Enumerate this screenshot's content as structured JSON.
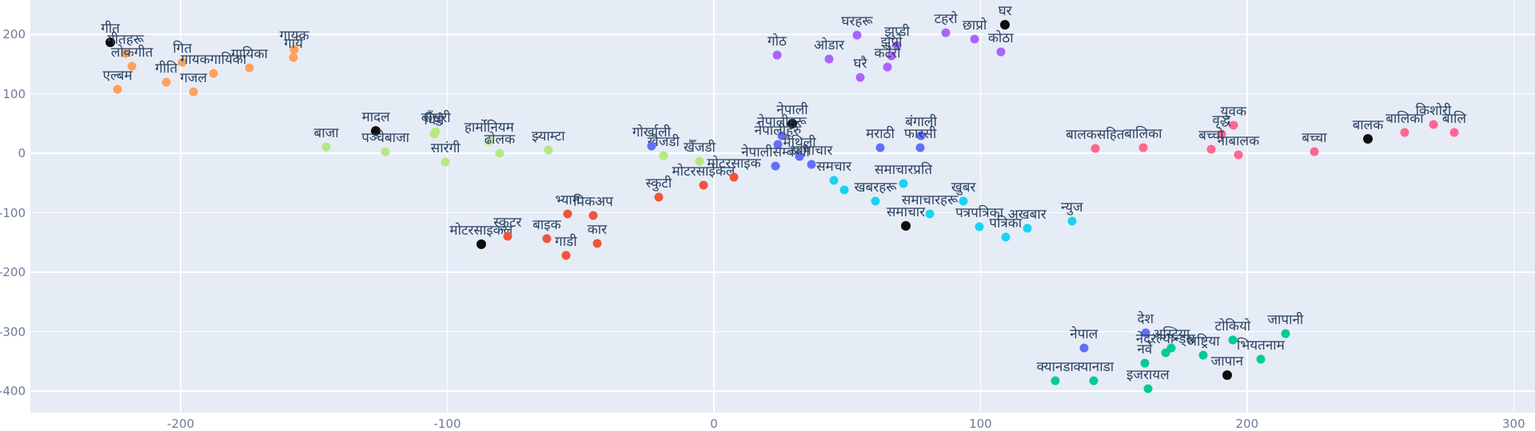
{
  "figure": {
    "background": "#ffffff",
    "plot_background": "#E5ECF6",
    "grid_color": "#ffffff",
    "label_color": "#2a3f5f",
    "tick_color": "#6e7b99",
    "query_marker_color": "#0d0d0d"
  },
  "axes": {
    "x": {
      "ticks": [
        -200,
        -100,
        0,
        100,
        200,
        300
      ],
      "range": [
        -256.4,
        308
      ]
    },
    "y": {
      "ticks": [
        200,
        100,
        0,
        -100,
        -200,
        -300,
        -400
      ],
      "range": [
        -436,
        258
      ]
    }
  },
  "chart_data": {
    "type": "scatter",
    "title": "",
    "xlabel": "",
    "ylabel": "",
    "grid": true,
    "legend": false,
    "series": [
      {
        "name": "गीत",
        "color": "#FFA15A",
        "points": [
          {
            "label": "गीत",
            "x": -226.4,
            "y": 186.6,
            "query": true
          },
          {
            "label": "गीतहरू",
            "x": -220.7,
            "y": 167.8
          },
          {
            "label": "लोकगीत",
            "x": -218.3,
            "y": 146.3
          },
          {
            "label": "एल्बम",
            "x": -223.7,
            "y": 107.4
          },
          {
            "label": "गित",
            "x": -199.4,
            "y": 153.0
          },
          {
            "label": "गीति",
            "x": -205.4,
            "y": 119.5
          },
          {
            "label": "गजल",
            "x": -195.2,
            "y": 103.4
          },
          {
            "label": "गायकगायिका",
            "x": -187.7,
            "y": 134.2
          },
          {
            "label": "गायिका",
            "x": -174.2,
            "y": 143.6
          },
          {
            "label": "गायक",
            "x": -157.4,
            "y": 174.5
          },
          {
            "label": "गाये",
            "x": -157.7,
            "y": 161.1
          }
        ]
      },
      {
        "name": "घर",
        "color": "#AB63FA",
        "points": [
          {
            "label": "घर",
            "x": 109.2,
            "y": 216.1,
            "query": true
          },
          {
            "label": "घरहरू",
            "x": 53.7,
            "y": 198.7
          },
          {
            "label": "टहरो",
            "x": 87.0,
            "y": 202.7
          },
          {
            "label": "छाप्रो",
            "x": 97.8,
            "y": 191.9
          },
          {
            "label": "कोठा",
            "x": 107.6,
            "y": 170.5
          },
          {
            "label": "झुप्डी",
            "x": 68.7,
            "y": 181.2
          },
          {
            "label": "झुप्रो",
            "x": 66.6,
            "y": 163.8
          },
          {
            "label": "कटेरो",
            "x": 65.1,
            "y": 145.0
          },
          {
            "label": "घरै",
            "x": 54.9,
            "y": 127.5
          },
          {
            "label": "ओडार",
            "x": 43.2,
            "y": 158.4
          },
          {
            "label": "गोठ",
            "x": 23.7,
            "y": 165.1
          }
        ]
      },
      {
        "name": "मादल",
        "color": "#B6E880",
        "points": [
          {
            "label": "मादल",
            "x": -126.8,
            "y": 37.6,
            "query": true
          },
          {
            "label": "बाजा",
            "x": -145.4,
            "y": 10.7
          },
          {
            "label": "पञ्चेबाजा",
            "x": -123.2,
            "y": 2.7
          },
          {
            "label": "बाँसुरी",
            "x": -104.3,
            "y": 36.2
          },
          {
            "label": "धिमे",
            "x": -105.0,
            "y": 32.2
          },
          {
            "label": "सारंगी",
            "x": -100.7,
            "y": -14.8
          },
          {
            "label": "हार्मोनियम",
            "x": -84.3,
            "y": 20.1
          },
          {
            "label": "ढोलक",
            "x": -80.4,
            "y": 0
          },
          {
            "label": "झ्याम्टा",
            "x": -62.1,
            "y": 5.4
          },
          {
            "label": "खैजडी",
            "x": -18.9,
            "y": -4.0
          },
          {
            "label": "खैँजडी",
            "x": -5.4,
            "y": -13.4
          }
        ]
      },
      {
        "name": "नेपाली",
        "color": "#636EFA",
        "points": [
          {
            "label": "नेपाली",
            "x": 29.4,
            "y": 49.7,
            "query": true
          },
          {
            "label": "गोर्खाली",
            "x": -23.4,
            "y": 12.1
          },
          {
            "label": "नेपालीहरू",
            "x": 25.5,
            "y": 29.5
          },
          {
            "label": "नेपालीहरु",
            "x": 24.0,
            "y": 14.8
          },
          {
            "label": "नेपालीसम्बन्धी",
            "x": 23.1,
            "y": -21.5
          },
          {
            "label": "मैथिली",
            "x": 32.1,
            "y": -5.4
          },
          {
            "label": "सामाचार",
            "x": 36.6,
            "y": -18.8
          },
          {
            "label": "मराठी",
            "x": 62.4,
            "y": 9.4
          },
          {
            "label": "बंगाली",
            "x": 77.7,
            "y": 29.5
          },
          {
            "label": "फारसी",
            "x": 77.4,
            "y": 9.4
          }
        ]
      },
      {
        "name": "मोटरसाइकल",
        "color": "#EF553B",
        "points": [
          {
            "label": "मोटरसाइकल",
            "x": -87.3,
            "y": -153.0,
            "query": true
          },
          {
            "label": "स्कुटर",
            "x": -77.4,
            "y": -139.6
          },
          {
            "label": "बाइक",
            "x": -62.7,
            "y": -143.6
          },
          {
            "label": "गाडी",
            "x": -55.5,
            "y": -171.8
          },
          {
            "label": "कार",
            "x": -43.8,
            "y": -151.7
          },
          {
            "label": "भ्यान",
            "x": -54.9,
            "y": -102.0
          },
          {
            "label": "पिकअप",
            "x": -45.3,
            "y": -104.7
          },
          {
            "label": "स्कुटी",
            "x": -20.7,
            "y": -73.8
          },
          {
            "label": "मोटरसाईकल",
            "x": -3.9,
            "y": -53.7
          },
          {
            "label": "मोटरसाइक",
            "x": 7.5,
            "y": -40.3
          }
        ]
      },
      {
        "name": "समाचार",
        "color": "#19D3F3",
        "points": [
          {
            "label": "समाचार",
            "x": 72.0,
            "y": -122.1,
            "query": true
          },
          {
            "label": "समचार",
            "x": 45.0,
            "y": -45.6
          },
          {
            "label": "",
            "x": 48.9,
            "y": -61.7
          },
          {
            "label": "खबरहरू",
            "x": 60.6,
            "y": -80.5
          },
          {
            "label": "समाचारप्रति",
            "x": 71.1,
            "y": -51.0
          },
          {
            "label": "खुबर",
            "x": 93.6,
            "y": -80.5
          },
          {
            "label": "समाचारहरू",
            "x": 81.0,
            "y": -102.0
          },
          {
            "label": "पत्रपत्रिका",
            "x": 99.6,
            "y": -123.5
          },
          {
            "label": "अखबार",
            "x": 117.5,
            "y": -126.2
          },
          {
            "label": "पत्रिका",
            "x": 109.4,
            "y": -141.0
          },
          {
            "label": "न्युज",
            "x": 134.3,
            "y": -114.1
          }
        ]
      },
      {
        "name": "बालक",
        "color": "#FF6692",
        "points": [
          {
            "label": "बालक",
            "x": 245.3,
            "y": 24.2,
            "query": true
          },
          {
            "label": "बालकसहित",
            "x": 143.0,
            "y": 8.1
          },
          {
            "label": "बालिका",
            "x": 161.0,
            "y": 9.4
          },
          {
            "label": "युवक",
            "x": 194.9,
            "y": 47.0
          },
          {
            "label": "वृद्ध",
            "x": 190.4,
            "y": 32.2
          },
          {
            "label": "बच्चो",
            "x": 186.5,
            "y": 6.7
          },
          {
            "label": "नाबालक",
            "x": 196.7,
            "y": -2.7
          },
          {
            "label": "बच्चा",
            "x": 225.2,
            "y": 2.7
          },
          {
            "label": "बालिका",
            "x": 259.1,
            "y": 34.9
          },
          {
            "label": "किशोरी",
            "x": 269.9,
            "y": 48.3
          },
          {
            "label": "बालि",
            "x": 277.7,
            "y": 34.9
          }
        ]
      },
      {
        "name": "जापान",
        "color": "#00CC96",
        "points": [
          {
            "label": "जापान",
            "x": 192.5,
            "y": -373.2,
            "query": true
          },
          {
            "label": "नेपाल",
            "x": 138.8,
            "y": -327.5,
            "color": "#636EFA"
          },
          {
            "label": "देश",
            "x": 161.9,
            "y": -302.0,
            "color": "#636EFA"
          },
          {
            "label": "नेदरल्यान्ड्स",
            "x": 169.4,
            "y": -335.6
          },
          {
            "label": "अस्ट्रिया",
            "x": 171.5,
            "y": -327.5
          },
          {
            "label": "अष्ट्रिया",
            "x": 183.5,
            "y": -339.6
          },
          {
            "label": "नर्वे",
            "x": 161.6,
            "y": -353.0
          },
          {
            "label": "टोकियो",
            "x": 194.6,
            "y": -314.1
          },
          {
            "label": "जापानी",
            "x": 214.4,
            "y": -303.4
          },
          {
            "label": "भियतनाम",
            "x": 205.1,
            "y": -346.3
          },
          {
            "label": "क्यानडा",
            "x": 128.0,
            "y": -382.6
          },
          {
            "label": "क्यानाडा",
            "x": 142.4,
            "y": -382.6
          },
          {
            "label": "इजरायल",
            "x": 162.8,
            "y": -396.0
          }
        ]
      }
    ]
  }
}
